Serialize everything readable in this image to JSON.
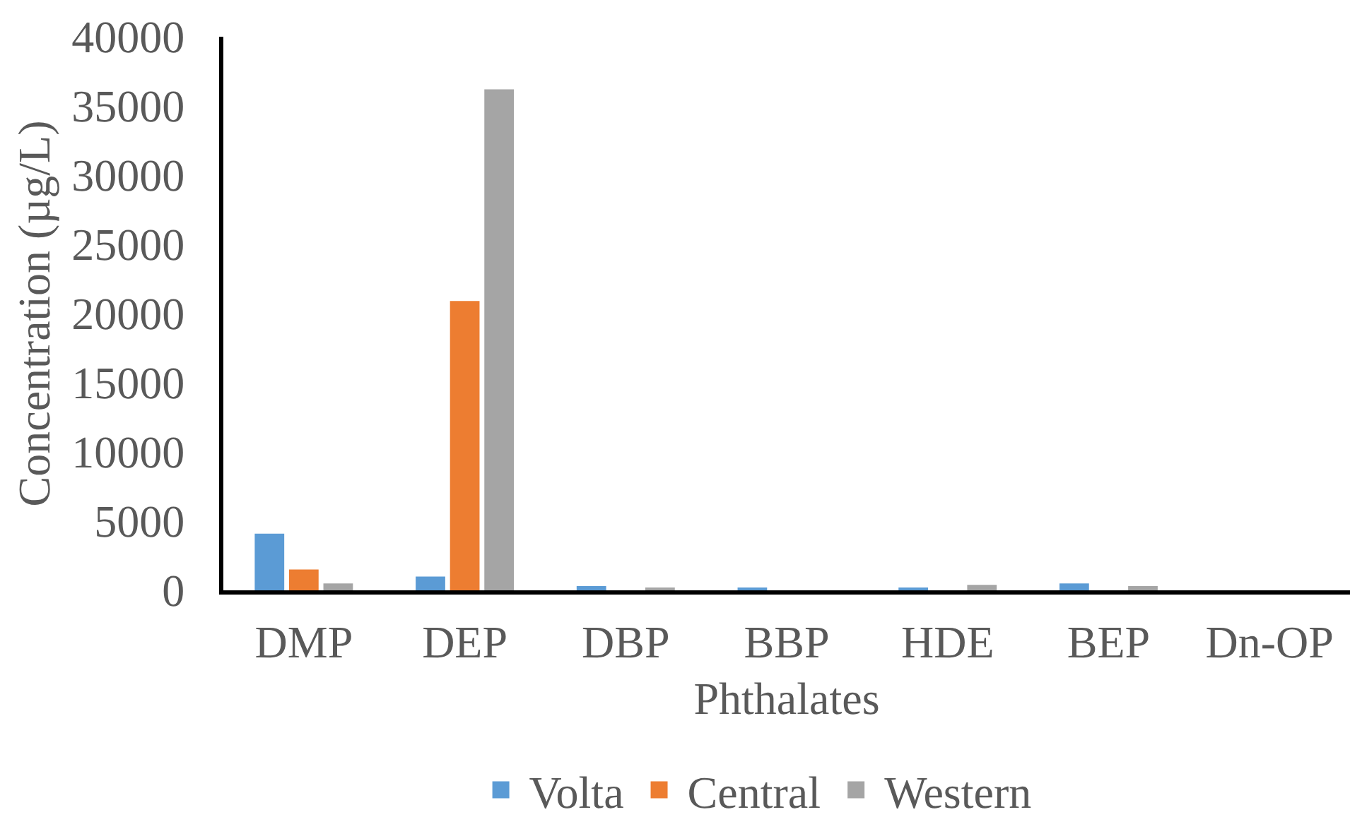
{
  "chart_data": {
    "type": "bar",
    "xlabel": "Phthalates",
    "ylabel": "Concentration (µg/L)",
    "categories": [
      "DMP",
      "DEP",
      "DBP",
      "BBP",
      "HDE",
      "BEP",
      "Dn-OP"
    ],
    "series": [
      {
        "name": "Volta",
        "color": "#5b9bd5",
        "values": [
          4100,
          1000,
          300,
          200,
          200,
          500,
          0
        ]
      },
      {
        "name": "Central",
        "color": "#ed7d31",
        "values": [
          1500,
          20900,
          0,
          0,
          0,
          0,
          0
        ]
      },
      {
        "name": "Western",
        "color": "#a5a5a5",
        "values": [
          500,
          36200,
          200,
          0,
          400,
          300,
          0
        ]
      }
    ],
    "ylim": [
      0,
      40000
    ],
    "yticks": [
      0,
      5000,
      10000,
      15000,
      20000,
      25000,
      30000,
      35000,
      40000
    ],
    "grid": false,
    "legend": "bottom"
  }
}
